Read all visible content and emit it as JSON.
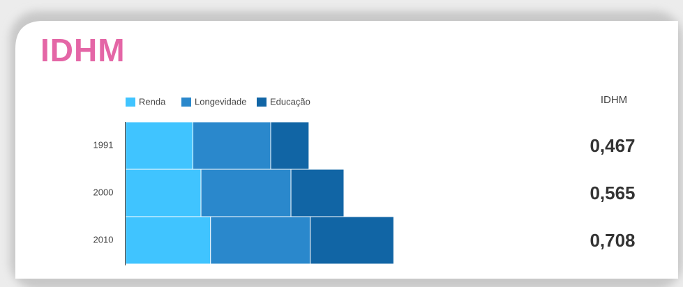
{
  "chart_data": {
    "type": "stacked_barh",
    "title": "IDHM",
    "categories": [
      "1991",
      "2000",
      "2010"
    ],
    "series": [
      {
        "name": "Renda",
        "color": "#40c4ff",
        "values": [
          0.535,
          0.599,
          0.675
        ]
      },
      {
        "name": "Longevidade",
        "color": "#2a88cc",
        "values": [
          0.618,
          0.715,
          0.792
        ]
      },
      {
        "name": "Educação",
        "color": "#1165a5",
        "values": [
          0.304,
          0.421,
          0.664
        ]
      }
    ],
    "xlim": [
      0,
      2.5
    ],
    "totals": {
      "name": "IDHM",
      "values": [
        0.467,
        0.565,
        0.708
      ],
      "value_labels": [
        "0,467",
        "0,565",
        "0,708"
      ]
    },
    "legend": "top"
  }
}
